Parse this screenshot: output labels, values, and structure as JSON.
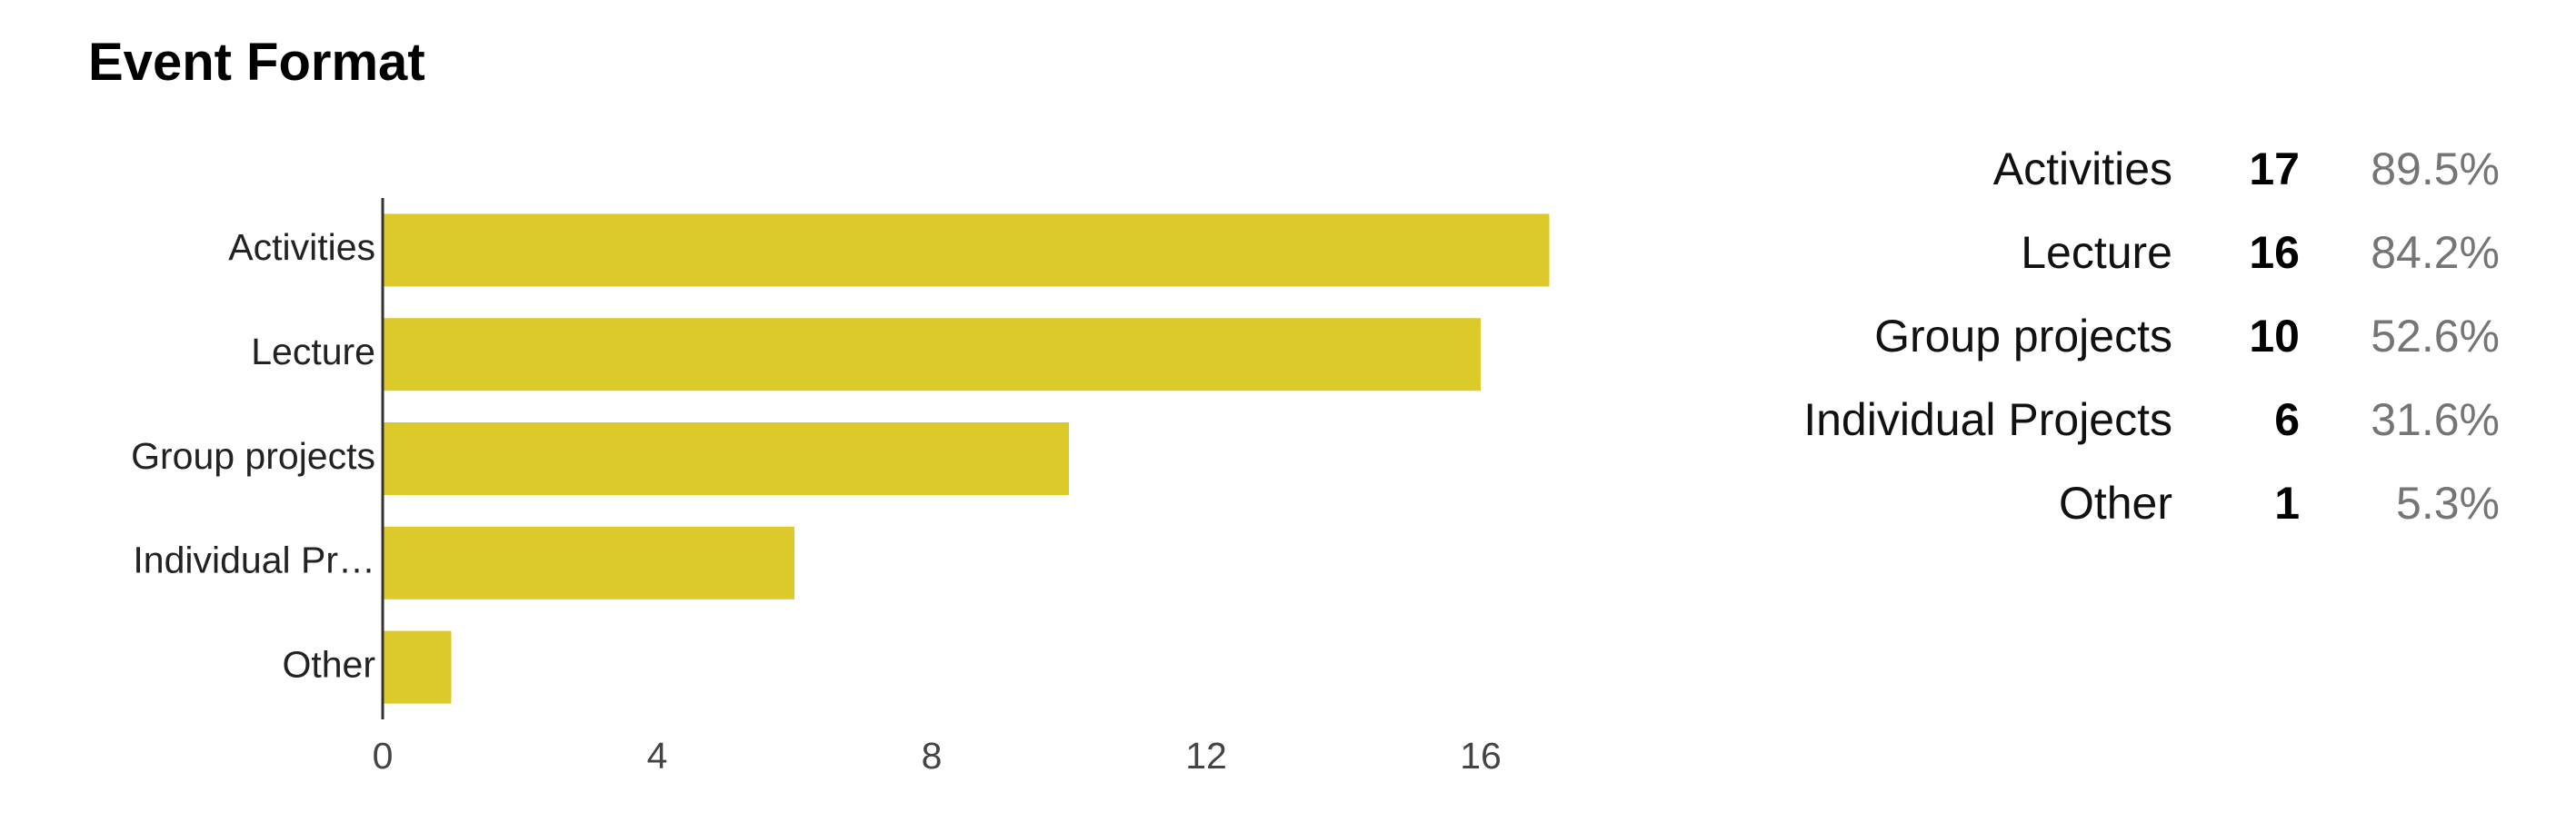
{
  "title": "Event Format",
  "colors": {
    "bar": "#dbca2a",
    "axis": "#333333"
  },
  "chart_data": {
    "type": "bar",
    "orientation": "horizontal",
    "title": "Event Format",
    "categories": [
      "Activities",
      "Lecture",
      "Group projects",
      "Individual Pr…",
      "Other"
    ],
    "values": [
      17,
      16,
      10,
      6,
      1
    ],
    "x_ticks": [
      0,
      4,
      8,
      12,
      16
    ],
    "xlim": [
      0,
      17
    ],
    "grid": false,
    "legend": "none"
  },
  "summary": [
    {
      "label": "Activities",
      "count": "17",
      "percent": "89.5%"
    },
    {
      "label": "Lecture",
      "count": "16",
      "percent": "84.2%"
    },
    {
      "label": "Group projects",
      "count": "10",
      "percent": "52.6%"
    },
    {
      "label": "Individual Projects",
      "count": "6",
      "percent": "31.6%"
    },
    {
      "label": "Other",
      "count": "1",
      "percent": "5.3%"
    }
  ]
}
